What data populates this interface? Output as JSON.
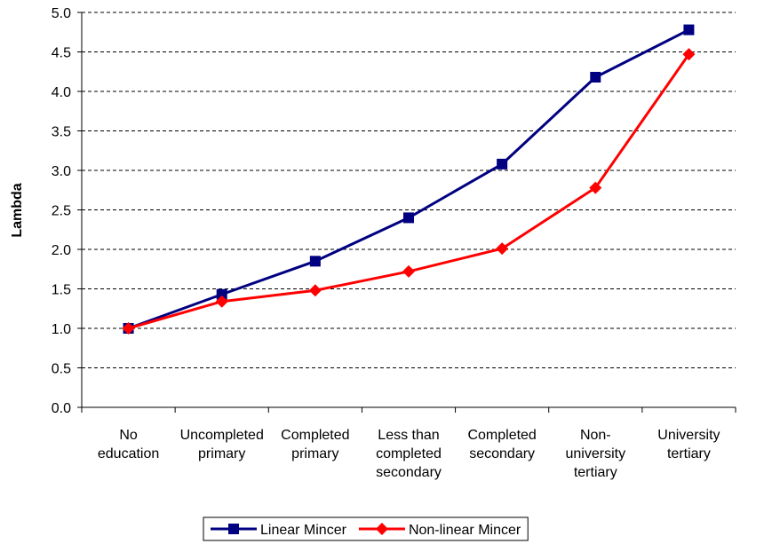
{
  "chart_data": {
    "type": "line",
    "y_label": "Lambda",
    "categories": [
      "No\neducation",
      "Uncompleted\nprimary",
      "Completed\nprimary",
      "Less than\ncompleted\nsecondary",
      "Completed\nsecondary",
      "Non-\nuniversity\ntertiary",
      "University\ntertiary"
    ],
    "series": [
      {
        "name": "Linear Mincer",
        "color": "#000080",
        "marker": "square",
        "values": [
          1.0,
          1.43,
          1.85,
          2.4,
          3.08,
          4.18,
          4.78
        ]
      },
      {
        "name": "Non-linear Mincer",
        "color": "#ff0000",
        "marker": "diamond",
        "values": [
          1.0,
          1.34,
          1.48,
          1.72,
          2.01,
          2.78,
          4.47
        ]
      }
    ],
    "ylim": [
      0,
      5
    ],
    "yticks": [
      {
        "value": 0,
        "label": "0.0"
      },
      {
        "value": 0.5,
        "label": "0.5"
      },
      {
        "value": 1,
        "label": "1.0"
      },
      {
        "value": 1.5,
        "label": "1.5"
      },
      {
        "value": 2,
        "label": "2.0"
      },
      {
        "value": 2.5,
        "label": "2.5"
      },
      {
        "value": 3,
        "label": "3.0"
      },
      {
        "value": 3.5,
        "label": "3.5"
      },
      {
        "value": 4,
        "label": "4.0"
      },
      {
        "value": 4.5,
        "label": "4.5"
      },
      {
        "value": 5,
        "label": "5.0"
      }
    ],
    "grid": true,
    "legend": "bottom"
  }
}
